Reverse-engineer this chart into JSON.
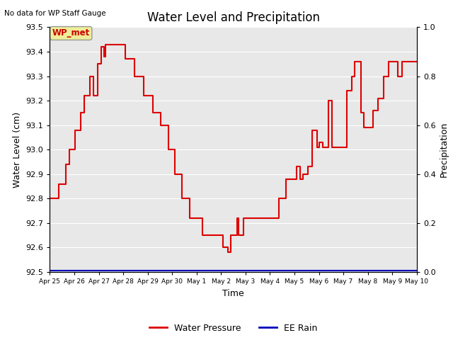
{
  "title": "Water Level and Precipitation",
  "top_left_text": "No data for WP Staff Gauge",
  "ylabel_left": "Water Level (cm)",
  "ylabel_right": "Precipitation",
  "xlabel": "Time",
  "ylim_left": [
    92.5,
    93.5
  ],
  "ylim_right": [
    0.0,
    1.0
  ],
  "yticks_left": [
    92.5,
    92.6,
    92.7,
    92.8,
    92.9,
    93.0,
    93.1,
    93.2,
    93.3,
    93.4,
    93.5
  ],
  "yticks_right": [
    0.0,
    0.2,
    0.4,
    0.6,
    0.8,
    1.0
  ],
  "annotation_text": "WP_met",
  "annotation_box_facecolor": "#eeee99",
  "annotation_box_edgecolor": "#aaaaaa",
  "annotation_text_color": "#cc0000",
  "line_color": "#dd0000",
  "rain_line_color": "#0000bb",
  "plot_bg_color": "#e8e8e8",
  "grid_color": "#ffffff",
  "water_pressure_data": [
    [
      0,
      92.8
    ],
    [
      0.2,
      92.86
    ],
    [
      0.35,
      92.94
    ],
    [
      0.42,
      93.0
    ],
    [
      0.55,
      93.08
    ],
    [
      0.68,
      93.15
    ],
    [
      0.75,
      93.22
    ],
    [
      0.88,
      93.3
    ],
    [
      0.95,
      93.22
    ],
    [
      1.05,
      93.35
    ],
    [
      1.12,
      93.42
    ],
    [
      1.18,
      93.38
    ],
    [
      1.22,
      93.43
    ],
    [
      1.27,
      93.43
    ],
    [
      1.45,
      93.43
    ],
    [
      1.65,
      93.37
    ],
    [
      1.85,
      93.3
    ],
    [
      2.05,
      93.22
    ],
    [
      2.25,
      93.15
    ],
    [
      2.42,
      93.1
    ],
    [
      2.58,
      93.0
    ],
    [
      2.72,
      92.9
    ],
    [
      2.88,
      92.8
    ],
    [
      3.05,
      92.72
    ],
    [
      3.18,
      92.72
    ],
    [
      3.32,
      92.65
    ],
    [
      3.48,
      92.65
    ],
    [
      3.65,
      92.65
    ],
    [
      3.78,
      92.6
    ],
    [
      3.88,
      92.58
    ],
    [
      3.95,
      92.65
    ],
    [
      4.02,
      92.65
    ],
    [
      4.08,
      92.72
    ],
    [
      4.12,
      92.65
    ],
    [
      4.18,
      92.65
    ],
    [
      4.22,
      92.72
    ],
    [
      4.28,
      92.72
    ],
    [
      4.35,
      92.72
    ],
    [
      4.45,
      92.72
    ],
    [
      4.58,
      92.72
    ],
    [
      4.72,
      92.72
    ],
    [
      4.85,
      92.72
    ],
    [
      5.0,
      92.8
    ],
    [
      5.15,
      92.88
    ],
    [
      5.28,
      92.88
    ],
    [
      5.38,
      92.93
    ],
    [
      5.45,
      92.88
    ],
    [
      5.52,
      92.9
    ],
    [
      5.62,
      92.93
    ],
    [
      5.72,
      93.08
    ],
    [
      5.82,
      93.01
    ],
    [
      5.88,
      93.03
    ],
    [
      5.95,
      93.01
    ],
    [
      6.02,
      93.01
    ],
    [
      6.08,
      93.2
    ],
    [
      6.15,
      93.01
    ],
    [
      6.22,
      93.01
    ],
    [
      6.35,
      93.01
    ],
    [
      6.48,
      93.24
    ],
    [
      6.58,
      93.3
    ],
    [
      6.65,
      93.36
    ],
    [
      6.72,
      93.36
    ],
    [
      6.78,
      93.15
    ],
    [
      6.85,
      93.09
    ],
    [
      6.95,
      93.09
    ],
    [
      7.05,
      93.16
    ],
    [
      7.15,
      93.21
    ],
    [
      7.28,
      93.3
    ],
    [
      7.38,
      93.36
    ],
    [
      7.48,
      93.36
    ],
    [
      7.58,
      93.3
    ],
    [
      7.68,
      93.36
    ],
    [
      7.78,
      93.36
    ],
    [
      8.0,
      93.36
    ]
  ],
  "xmin": 0,
  "xmax": 8,
  "xtick_labels": [
    "Apr 25",
    "Apr 26",
    "Apr 27",
    "Apr 28",
    "Apr 29",
    "Apr 30",
    "May 1",
    "May 2",
    "May 3",
    "May 4",
    "May 5",
    "May 6",
    "May 7",
    "May 8",
    "May 9",
    "May 10"
  ],
  "legend_wp_label": "Water Pressure",
  "legend_rain_label": "EE Rain"
}
